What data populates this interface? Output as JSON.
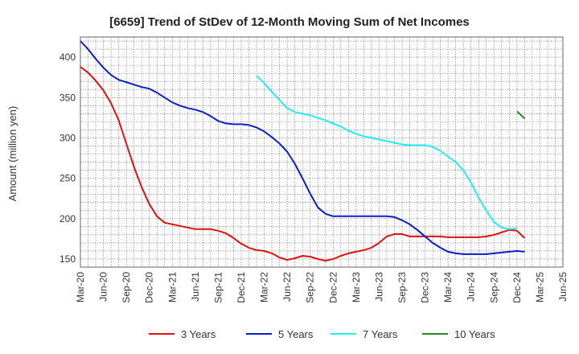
{
  "chart_data": {
    "type": "line",
    "title": "[6659]  Trend of StDev of 12-Month Moving Sum of Net Incomes",
    "xlabel": "",
    "ylabel": "Amount (million yen)",
    "ylim": [
      140,
      425
    ],
    "yticks": [
      150,
      200,
      250,
      300,
      350,
      400
    ],
    "xtick_labels": [
      "Mar-20",
      "Jun-20",
      "Sep-20",
      "Dec-20",
      "Mar-21",
      "Jun-21",
      "Sep-21",
      "Dec-21",
      "Mar-22",
      "Jun-22",
      "Sep-22",
      "Dec-22",
      "Mar-23",
      "Jun-23",
      "Sep-23",
      "Dec-23",
      "Mar-24",
      "Jun-24",
      "Sep-24",
      "Dec-24",
      "Mar-25",
      "Jun-25"
    ],
    "grid": true,
    "legend_position": "bottom",
    "series": [
      {
        "name": "3 Years",
        "color": "#dd1111",
        "values": [
          388,
          381,
          371,
          359,
          343,
          322,
          293,
          264,
          239,
          218,
          203,
          195,
          193,
          191,
          189,
          187,
          187,
          187,
          185,
          182,
          176,
          169,
          164,
          161,
          160,
          157,
          152,
          149,
          151,
          154,
          153,
          150,
          148,
          150,
          154,
          157,
          159,
          161,
          164,
          170,
          178,
          181,
          181,
          178,
          178,
          178,
          178,
          178,
          177,
          177,
          177,
          177,
          177,
          178,
          180,
          183,
          186,
          185,
          176
        ]
      },
      {
        "name": "5 Years",
        "color": "#0a1ec8",
        "values": [
          420,
          410,
          398,
          387,
          378,
          372,
          369,
          366,
          363,
          361,
          356,
          350,
          344,
          340,
          337,
          335,
          332,
          327,
          321,
          318,
          317,
          317,
          316,
          313,
          308,
          301,
          293,
          283,
          268,
          250,
          231,
          214,
          206,
          203,
          203,
          203,
          203,
          203,
          203,
          203,
          203,
          202,
          198,
          193,
          186,
          178,
          170,
          164,
          159,
          157,
          156,
          156,
          156,
          156,
          157,
          158,
          159,
          160,
          159
        ]
      },
      {
        "name": "7 Years",
        "color": "#22eeee",
        "start_index": 23,
        "values": [
          377,
          368,
          357,
          347,
          337,
          332,
          330,
          328,
          325,
          322,
          318,
          314,
          309,
          305,
          302,
          300,
          298,
          296,
          294,
          292,
          291,
          291,
          291,
          289,
          284,
          277,
          270,
          260,
          245,
          226,
          210,
          196,
          189,
          187,
          188
        ]
      },
      {
        "name": "10 Years",
        "color": "#228822",
        "start_index": 57,
        "values": [
          333,
          324
        ]
      }
    ]
  }
}
